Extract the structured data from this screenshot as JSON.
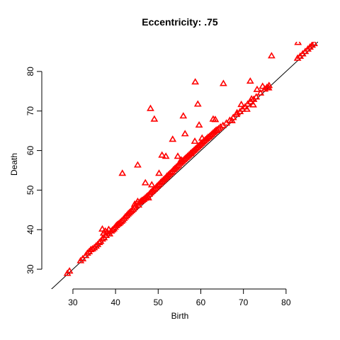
{
  "chart_data": {
    "type": "scatter",
    "title": "Eccentricity: .75",
    "xlabel": "Birth",
    "ylabel": "Death",
    "xlim": [
      22.7,
      87.5
    ],
    "ylim": [
      25,
      87.5
    ],
    "x_ticks": [
      30,
      40,
      50,
      60,
      70,
      80
    ],
    "y_ticks": [
      30,
      40,
      50,
      60,
      70,
      80
    ],
    "marker": "triangle-open",
    "color": "#ff0000",
    "reference_line": {
      "type": "diagonal",
      "slope": 1,
      "intercept": 0,
      "color": "#000000"
    },
    "grid": false,
    "legend": "none",
    "points": [
      [
        28.7,
        28.9
      ],
      [
        29.2,
        29.5
      ],
      [
        31.8,
        32.1
      ],
      [
        32.3,
        32.6
      ],
      [
        33.0,
        33.4
      ],
      [
        33.4,
        34.0
      ],
      [
        33.8,
        34.4
      ],
      [
        34.2,
        34.9
      ],
      [
        34.6,
        35.1
      ],
      [
        35.0,
        35.4
      ],
      [
        35.4,
        35.8
      ],
      [
        35.8,
        36.2
      ],
      [
        36.2,
        36.7
      ],
      [
        36.5,
        37.0
      ],
      [
        36.9,
        37.6
      ],
      [
        37.3,
        37.9
      ],
      [
        36.9,
        40.1
      ],
      [
        37.2,
        39.1
      ],
      [
        37.6,
        39.6
      ],
      [
        37.8,
        38.5
      ],
      [
        38.1,
        39.3
      ],
      [
        38.4,
        40.0
      ],
      [
        38.6,
        38.9
      ],
      [
        39.0,
        39.6
      ],
      [
        39.3,
        39.9
      ],
      [
        39.6,
        40.2
      ],
      [
        39.9,
        40.6
      ],
      [
        40.2,
        41.0
      ],
      [
        40.5,
        41.3
      ],
      [
        40.8,
        41.5
      ],
      [
        41.1,
        41.8
      ],
      [
        41.4,
        42.1
      ],
      [
        41.7,
        42.4
      ],
      [
        42.0,
        42.8
      ],
      [
        42.3,
        43.2
      ],
      [
        42.6,
        43.5
      ],
      [
        42.9,
        43.9
      ],
      [
        43.2,
        44.2
      ],
      [
        43.5,
        44.5
      ],
      [
        43.8,
        44.8
      ],
      [
        44.1,
        45.1
      ],
      [
        44.4,
        45.5
      ],
      [
        44.7,
        45.9
      ],
      [
        44.5,
        46.4
      ],
      [
        45.0,
        46.6
      ],
      [
        45.2,
        47.1
      ],
      [
        45.4,
        46.2
      ],
      [
        45.7,
        46.9
      ],
      [
        46.0,
        47.2
      ],
      [
        46.3,
        47.4
      ],
      [
        46.6,
        47.6
      ],
      [
        46.9,
        47.9
      ],
      [
        47.2,
        48.2
      ],
      [
        47.5,
        48.5
      ],
      [
        47.7,
        48.0
      ],
      [
        47.9,
        48.9
      ],
      [
        48.2,
        49.3
      ],
      [
        48.5,
        49.6
      ],
      [
        48.8,
        49.9
      ],
      [
        49.1,
        50.2
      ],
      [
        49.4,
        50.5
      ],
      [
        49.7,
        50.9
      ],
      [
        50.0,
        51.2
      ],
      [
        50.3,
        51.5
      ],
      [
        50.6,
        51.9
      ],
      [
        50.9,
        52.2
      ],
      [
        51.2,
        52.5
      ],
      [
        51.5,
        52.8
      ],
      [
        51.8,
        53.1
      ],
      [
        52.1,
        53.5
      ],
      [
        52.4,
        53.8
      ],
      [
        52.7,
        54.1
      ],
      [
        53.0,
        54.4
      ],
      [
        53.3,
        54.7
      ],
      [
        53.6,
        55.1
      ],
      [
        53.9,
        55.4
      ],
      [
        54.2,
        55.7
      ],
      [
        54.5,
        56.0
      ],
      [
        54.8,
        56.3
      ],
      [
        55.1,
        56.7
      ],
      [
        55.4,
        57.0
      ],
      [
        55.7,
        57.3
      ],
      [
        56.0,
        57.6
      ],
      [
        56.3,
        57.9
      ],
      [
        56.6,
        58.2
      ],
      [
        56.9,
        58.5
      ],
      [
        57.2,
        58.8
      ],
      [
        57.5,
        59.1
      ],
      [
        57.8,
        59.4
      ],
      [
        58.1,
        59.7
      ],
      [
        58.4,
        60.0
      ],
      [
        58.7,
        60.3
      ],
      [
        59.0,
        60.6
      ],
      [
        59.3,
        60.9
      ],
      [
        59.6,
        61.2
      ],
      [
        59.9,
        61.5
      ],
      [
        60.2,
        61.8
      ],
      [
        60.5,
        62.1
      ],
      [
        60.8,
        62.4
      ],
      [
        61.1,
        62.7
      ],
      [
        61.4,
        63.0
      ],
      [
        61.7,
        63.3
      ],
      [
        62.0,
        63.5
      ],
      [
        62.3,
        63.8
      ],
      [
        62.6,
        64.1
      ],
      [
        62.9,
        64.4
      ],
      [
        63.2,
        64.7
      ],
      [
        63.5,
        65.0
      ],
      [
        63.8,
        65.2
      ],
      [
        64.2,
        65.5
      ],
      [
        64.6,
        65.9
      ],
      [
        65.2,
        66.3
      ],
      [
        66.0,
        66.9
      ],
      [
        66.8,
        67.6
      ],
      [
        67.6,
        68.3
      ],
      [
        68.4,
        69.1
      ],
      [
        69.2,
        69.8
      ],
      [
        69.8,
        70.4
      ],
      [
        70.4,
        71.0
      ],
      [
        71.0,
        71.7
      ],
      [
        71.7,
        72.3
      ],
      [
        72.4,
        72.9
      ],
      [
        73.0,
        73.5
      ],
      [
        74.0,
        74.5
      ],
      [
        75.0,
        75.5
      ],
      [
        75.5,
        75.9
      ],
      [
        76.0,
        76.4
      ],
      [
        82.7,
        83.3
      ],
      [
        83.3,
        83.8
      ],
      [
        83.9,
        84.4
      ],
      [
        84.5,
        85.0
      ],
      [
        85.1,
        85.6
      ],
      [
        85.6,
        86.1
      ],
      [
        86.1,
        86.6
      ],
      [
        86.6,
        87.0
      ],
      [
        41.6,
        54.2
      ],
      [
        45.2,
        56.3
      ],
      [
        48.2,
        70.6
      ],
      [
        49.1,
        67.9
      ],
      [
        50.9,
        58.8
      ],
      [
        53.4,
        62.8
      ],
      [
        54.6,
        58.5
      ],
      [
        55.9,
        68.7
      ],
      [
        56.3,
        64.2
      ],
      [
        58.6,
        62.3
      ],
      [
        58.7,
        77.3
      ],
      [
        59.3,
        71.7
      ],
      [
        59.6,
        66.4
      ],
      [
        60.3,
        63.1
      ],
      [
        62.9,
        67.9
      ],
      [
        63.4,
        67.8
      ],
      [
        65.3,
        76.9
      ],
      [
        67.3,
        67.5
      ],
      [
        68.5,
        69.5
      ],
      [
        69.5,
        71.6
      ],
      [
        70.8,
        70.4
      ],
      [
        71.6,
        77.5
      ],
      [
        71.9,
        73.0
      ],
      [
        72.3,
        71.5
      ],
      [
        73.2,
        75.4
      ],
      [
        74.5,
        76.2
      ],
      [
        75.9,
        75.8
      ],
      [
        76.6,
        83.9
      ],
      [
        82.8,
        87.3
      ],
      [
        47.0,
        51.8
      ],
      [
        48.5,
        51.3
      ],
      [
        50.2,
        54.2
      ],
      [
        52.0,
        53.4
      ],
      [
        51.8,
        58.5
      ],
      [
        55.4,
        57.6
      ],
      [
        57.6,
        59.2
      ]
    ]
  }
}
